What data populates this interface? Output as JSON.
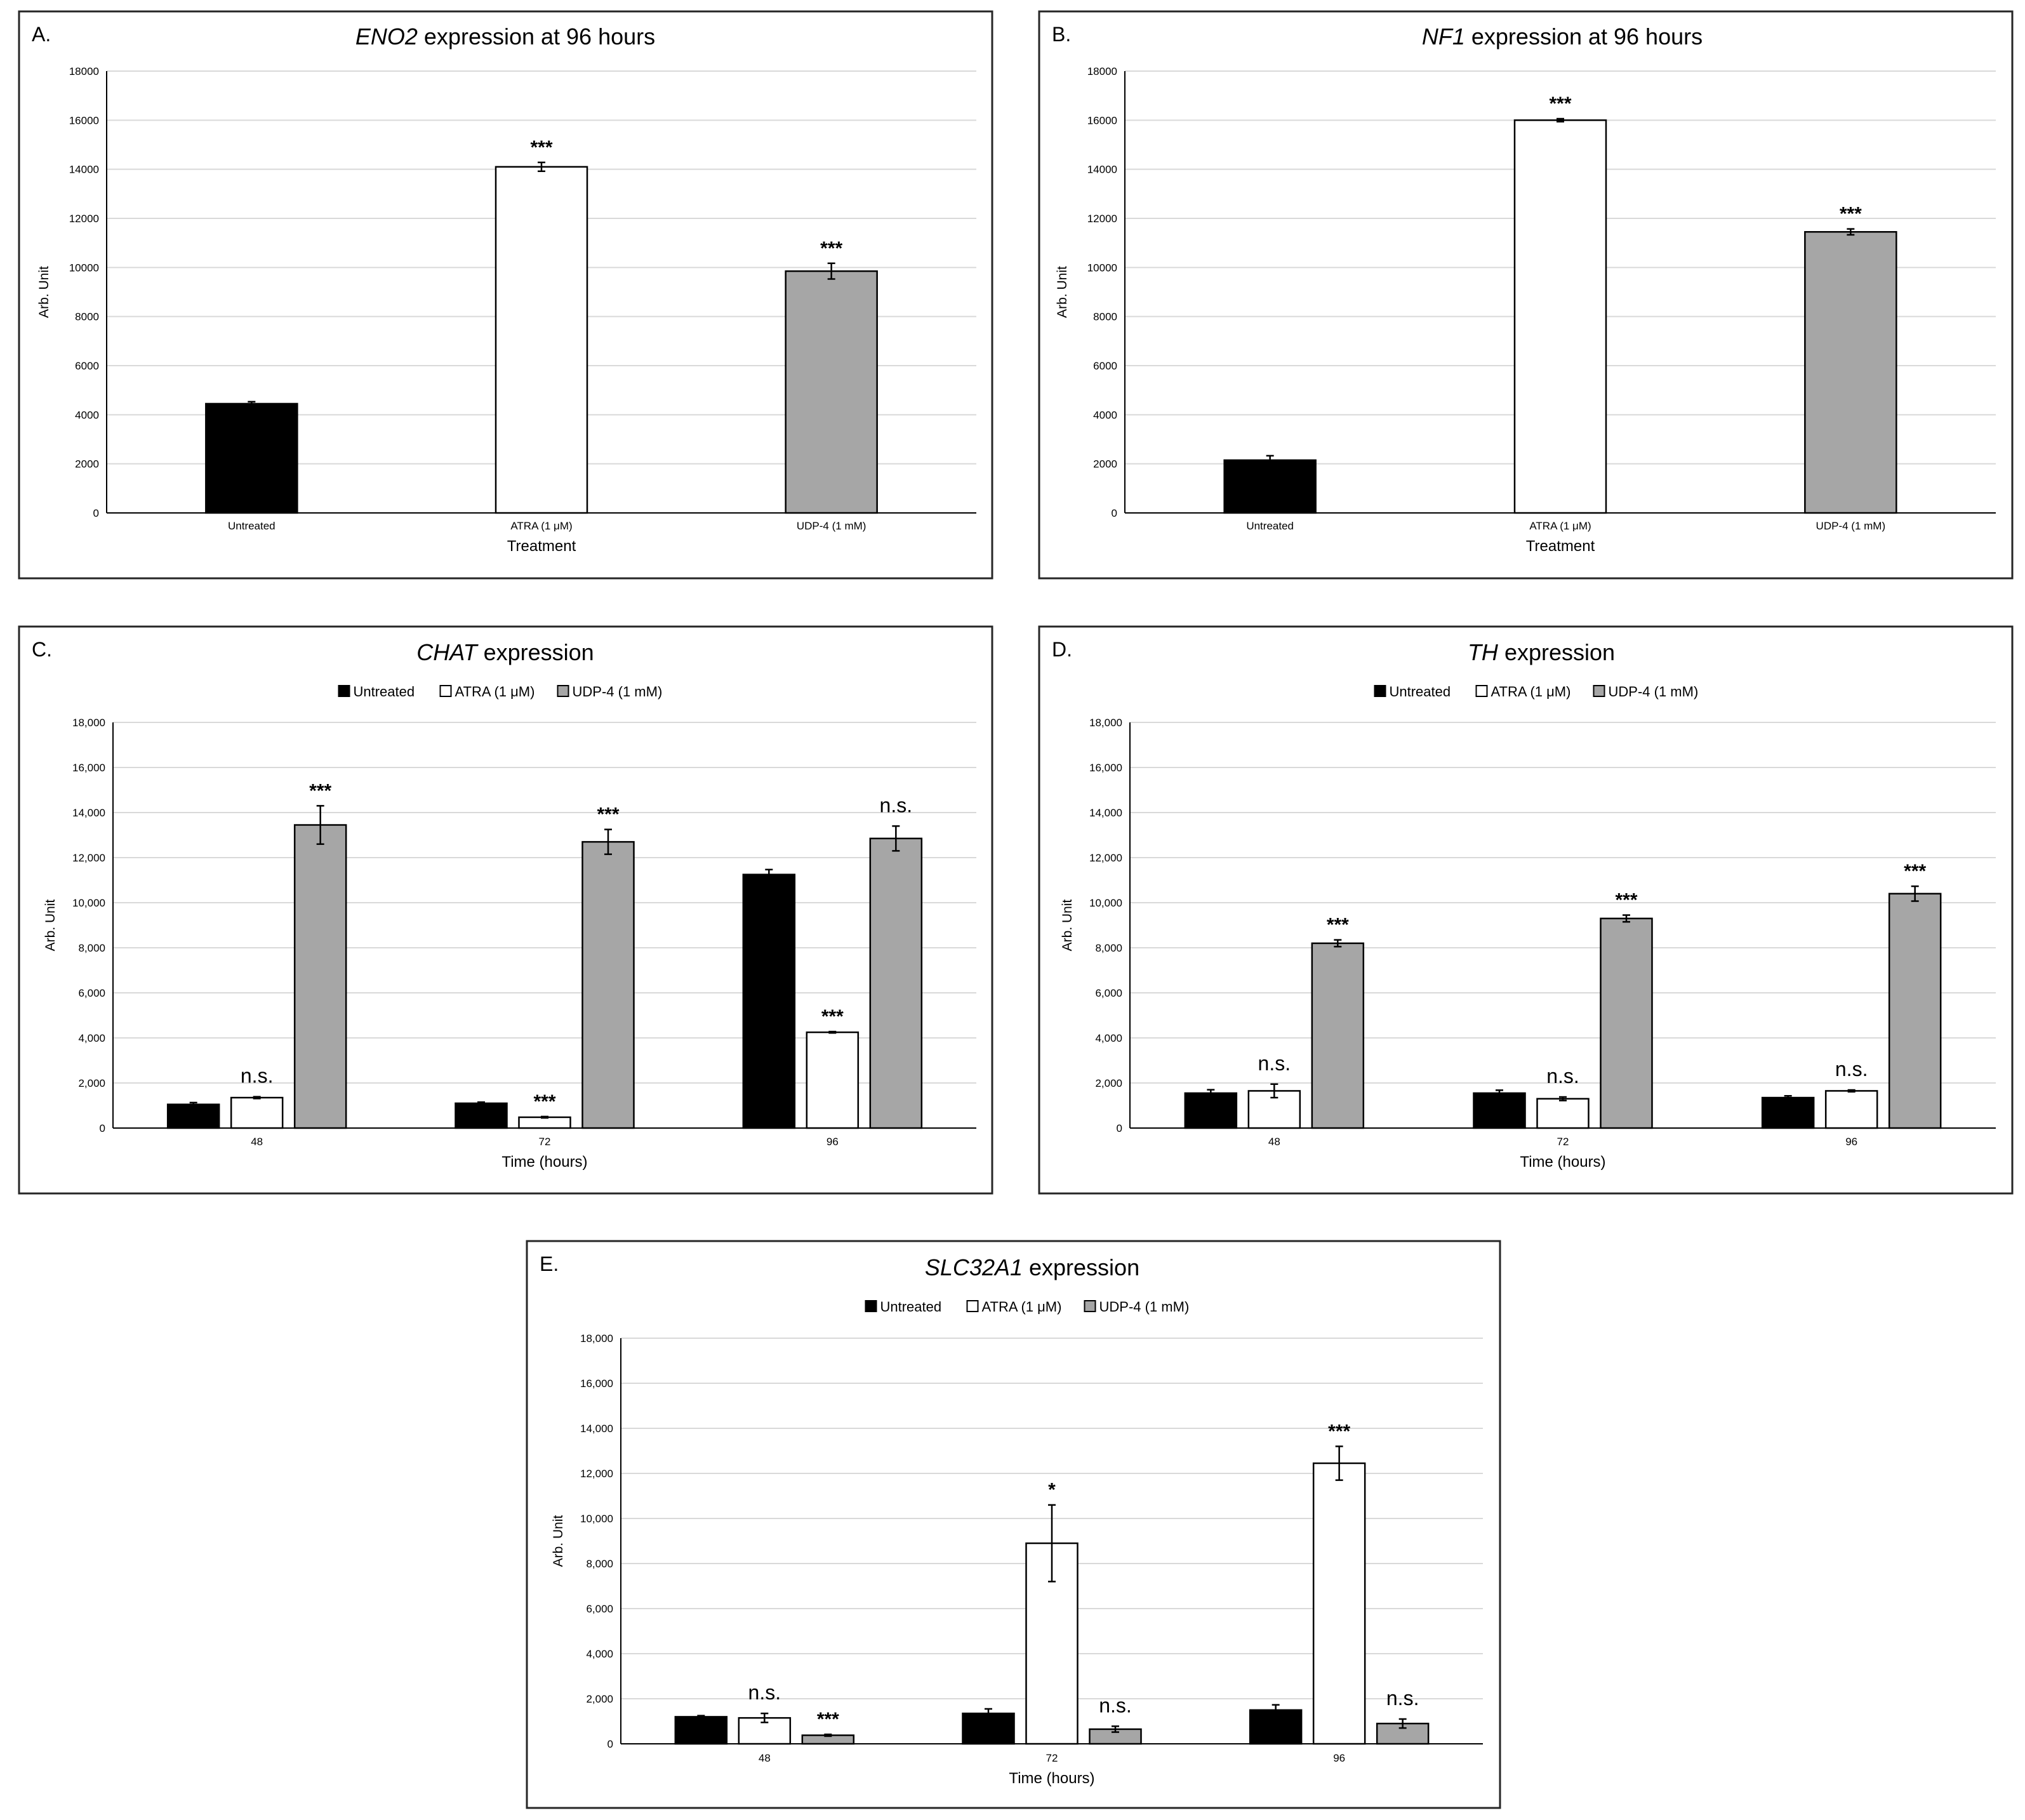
{
  "colors": {
    "Untreated": "#000000",
    "ATRA (1 μM)": "#ffffff",
    "UDP-4 (1 mM)": "#a6a6a6"
  },
  "chart_data": [
    {
      "panel": "A.",
      "type": "bar",
      "title_gene": "ENO2",
      "title_rest": " expression at 96 hours",
      "xlabel": "Treatment",
      "ylabel": "Arb. Unit",
      "ylim": [
        0,
        18000
      ],
      "yticks": [
        "0",
        "2000",
        "4000",
        "6000",
        "8000",
        "10000",
        "12000",
        "14000",
        "16000",
        "18000"
      ],
      "categories": [
        "Untreated",
        "ATRA (1 μM)",
        "UDP-4 (1 mM)"
      ],
      "values": [
        4450,
        14100,
        9850
      ],
      "errors": [
        80,
        180,
        320
      ],
      "annotations": [
        "",
        "***",
        "***"
      ],
      "bar_colors": [
        "#000000",
        "#ffffff",
        "#a6a6a6"
      ],
      "legend": null
    },
    {
      "panel": "B.",
      "type": "bar",
      "title_gene": "NF1",
      "title_rest": " expression at 96 hours",
      "xlabel": "Treatment",
      "ylabel": "Arb. Unit",
      "ylim": [
        0,
        18000
      ],
      "yticks": [
        "0",
        "2000",
        "4000",
        "6000",
        "8000",
        "10000",
        "12000",
        "14000",
        "16000",
        "18000"
      ],
      "categories": [
        "Untreated",
        "ATRA (1 μM)",
        "UDP-4 (1 mM)"
      ],
      "values": [
        2150,
        16000,
        11450
      ],
      "errors": [
        180,
        60,
        120
      ],
      "annotations": [
        "",
        "***",
        "***"
      ],
      "bar_colors": [
        "#000000",
        "#ffffff",
        "#a6a6a6"
      ],
      "legend": null
    },
    {
      "panel": "C.",
      "type": "bar",
      "title_gene": "CHAT",
      "title_rest": " expression",
      "xlabel": "Time (hours)",
      "ylabel": "Arb. Unit",
      "ylim": [
        0,
        18000
      ],
      "yticks": [
        "0",
        "2,000",
        "4,000",
        "6,000",
        "8,000",
        "10,000",
        "12,000",
        "14,000",
        "16,000",
        "18,000"
      ],
      "categories": [
        "48",
        "72",
        "96"
      ],
      "legend": [
        "Untreated",
        "ATRA (1 μM)",
        "UDP-4 (1 mM)"
      ],
      "series": [
        {
          "name": "Untreated",
          "values": [
            1050,
            1100,
            11250
          ],
          "errors": [
            80,
            50,
            220
          ],
          "annotations": [
            "",
            "",
            ""
          ]
        },
        {
          "name": "ATRA (1 μM)",
          "values": [
            1350,
            480,
            4250
          ],
          "errors": [
            40,
            30,
            30
          ],
          "annotations": [
            "n.s.",
            "***",
            "***"
          ]
        },
        {
          "name": "UDP-4 (1 mM)",
          "values": [
            13450,
            12700,
            12850
          ],
          "errors": [
            850,
            550,
            550
          ],
          "annotations": [
            "***",
            "***",
            "n.s."
          ]
        }
      ]
    },
    {
      "panel": "D.",
      "type": "bar",
      "title_gene": "TH",
      "title_rest": " expression",
      "xlabel": "Time (hours)",
      "ylabel": "Arb. Unit",
      "ylim": [
        0,
        18000
      ],
      "yticks": [
        "0",
        "2,000",
        "4,000",
        "6,000",
        "8,000",
        "10,000",
        "12,000",
        "14,000",
        "16,000",
        "18,000"
      ],
      "categories": [
        "48",
        "72",
        "96"
      ],
      "legend": [
        "Untreated",
        "ATRA (1 μM)",
        "UDP-4 (1 mM)"
      ],
      "series": [
        {
          "name": "Untreated",
          "values": [
            1550,
            1550,
            1350
          ],
          "errors": [
            150,
            130,
            80
          ],
          "annotations": [
            "",
            "",
            ""
          ]
        },
        {
          "name": "ATRA (1 μM)",
          "values": [
            1650,
            1300,
            1650
          ],
          "errors": [
            300,
            80,
            40
          ],
          "annotations": [
            "n.s.",
            "n.s.",
            "n.s."
          ]
        },
        {
          "name": "UDP-4 (1 mM)",
          "values": [
            8200,
            9300,
            10400
          ],
          "errors": [
            150,
            150,
            330
          ],
          "annotations": [
            "***",
            "***",
            "***"
          ]
        }
      ]
    },
    {
      "panel": "E.",
      "type": "bar",
      "title_gene": "SLC32A1",
      "title_rest": " expression",
      "xlabel": "Time (hours)",
      "ylabel": "Arb. Unit",
      "ylim": [
        0,
        18000
      ],
      "yticks": [
        "0",
        "2,000",
        "4,000",
        "6,000",
        "8,000",
        "10,000",
        "12,000",
        "14,000",
        "16,000",
        "18,000"
      ],
      "categories": [
        "48",
        "72",
        "96"
      ],
      "legend": [
        "Untreated",
        "ATRA (1 μM)",
        "UDP-4 (1 mM)"
      ],
      "series": [
        {
          "name": "Untreated",
          "values": [
            1200,
            1350,
            1500
          ],
          "errors": [
            50,
            200,
            230
          ],
          "annotations": [
            "",
            "",
            ""
          ]
        },
        {
          "name": "ATRA (1 μM)",
          "values": [
            1150,
            8900,
            12450
          ],
          "errors": [
            200,
            1700,
            750
          ],
          "annotations": [
            "n.s.",
            "*",
            "***"
          ]
        },
        {
          "name": "UDP-4 (1 mM)",
          "values": [
            380,
            650,
            900
          ],
          "errors": [
            40,
            130,
            200
          ],
          "annotations": [
            "***",
            "n.s.",
            "n.s."
          ]
        }
      ]
    }
  ]
}
